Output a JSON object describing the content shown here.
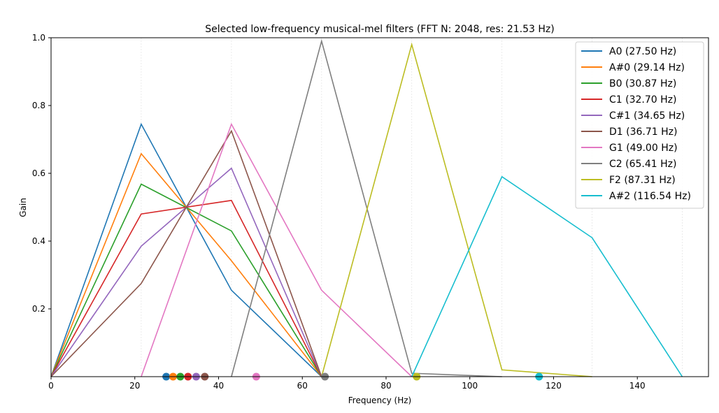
{
  "chart_data": {
    "type": "line",
    "title": "Selected low-frequency musical-mel filters (FFT N: 2048, res: 21.53 Hz)",
    "xlabel": "Frequency (Hz)",
    "ylabel": "Gain",
    "xlim": [
      0,
      157
    ],
    "ylim": [
      0,
      1.0
    ],
    "x_ticks": [
      0,
      20,
      40,
      60,
      80,
      100,
      120,
      140
    ],
    "y_ticks": [
      0.2,
      0.4,
      0.6,
      0.8,
      1.0
    ],
    "x_tick_labels": [
      "0",
      "20",
      "40",
      "60",
      "80",
      "100",
      "120",
      "140"
    ],
    "y_tick_labels": [
      "0.2",
      "0.4",
      "0.6",
      "0.8",
      "1.0"
    ],
    "grid_x": [
      21.53,
      43.07,
      64.6,
      86.13,
      107.67,
      129.2,
      150.73
    ],
    "legend_position": "top-right",
    "series": [
      {
        "name": "A0 (27.50 Hz)",
        "color": "#1f77b4",
        "center": 27.5,
        "points": [
          [
            0,
            0
          ],
          [
            21.53,
            0.745
          ],
          [
            43.07,
            0.255
          ],
          [
            64.6,
            0
          ]
        ]
      },
      {
        "name": "A#0 (29.14 Hz)",
        "color": "#ff7f0e",
        "center": 29.14,
        "points": [
          [
            0,
            0
          ],
          [
            21.53,
            0.658
          ],
          [
            43.07,
            0.342
          ],
          [
            64.6,
            0
          ]
        ]
      },
      {
        "name": "B0 (30.87 Hz)",
        "color": "#2ca02c",
        "center": 30.87,
        "points": [
          [
            0,
            0
          ],
          [
            21.53,
            0.568
          ],
          [
            43.07,
            0.43
          ],
          [
            64.6,
            0
          ]
        ]
      },
      {
        "name": "C1 (32.70 Hz)",
        "color": "#d62728",
        "center": 32.7,
        "points": [
          [
            0,
            0
          ],
          [
            21.53,
            0.48
          ],
          [
            43.07,
            0.52
          ],
          [
            64.6,
            0
          ]
        ]
      },
      {
        "name": "C#1 (34.65 Hz)",
        "color": "#9467bd",
        "center": 34.65,
        "points": [
          [
            0,
            0
          ],
          [
            21.53,
            0.385
          ],
          [
            43.07,
            0.615
          ],
          [
            64.6,
            0
          ]
        ]
      },
      {
        "name": "D1 (36.71 Hz)",
        "color": "#8c564b",
        "center": 36.71,
        "points": [
          [
            0,
            0
          ],
          [
            21.53,
            0.275
          ],
          [
            43.07,
            0.725
          ],
          [
            64.6,
            0
          ]
        ]
      },
      {
        "name": "G1 (49.00 Hz)",
        "color": "#e377c2",
        "center": 49.0,
        "points": [
          [
            21.53,
            0
          ],
          [
            43.07,
            0.745
          ],
          [
            64.6,
            0.255
          ],
          [
            86.13,
            0
          ]
        ]
      },
      {
        "name": "C2 (65.41 Hz)",
        "color": "#7f7f7f",
        "center": 65.41,
        "points": [
          [
            43.07,
            0
          ],
          [
            64.6,
            0.99
          ],
          [
            86.13,
            0.01
          ],
          [
            107.67,
            0
          ]
        ]
      },
      {
        "name": "F2 (87.31 Hz)",
        "color": "#bcbd22",
        "center": 87.31,
        "points": [
          [
            64.6,
            0
          ],
          [
            86.13,
            0.98
          ],
          [
            107.67,
            0.02
          ],
          [
            129.2,
            0
          ]
        ]
      },
      {
        "name": "A#2 (116.54 Hz)",
        "color": "#17becf",
        "center": 116.54,
        "points": [
          [
            86.13,
            0
          ],
          [
            107.67,
            0.59
          ],
          [
            129.2,
            0.41
          ],
          [
            150.73,
            0
          ]
        ]
      }
    ]
  }
}
